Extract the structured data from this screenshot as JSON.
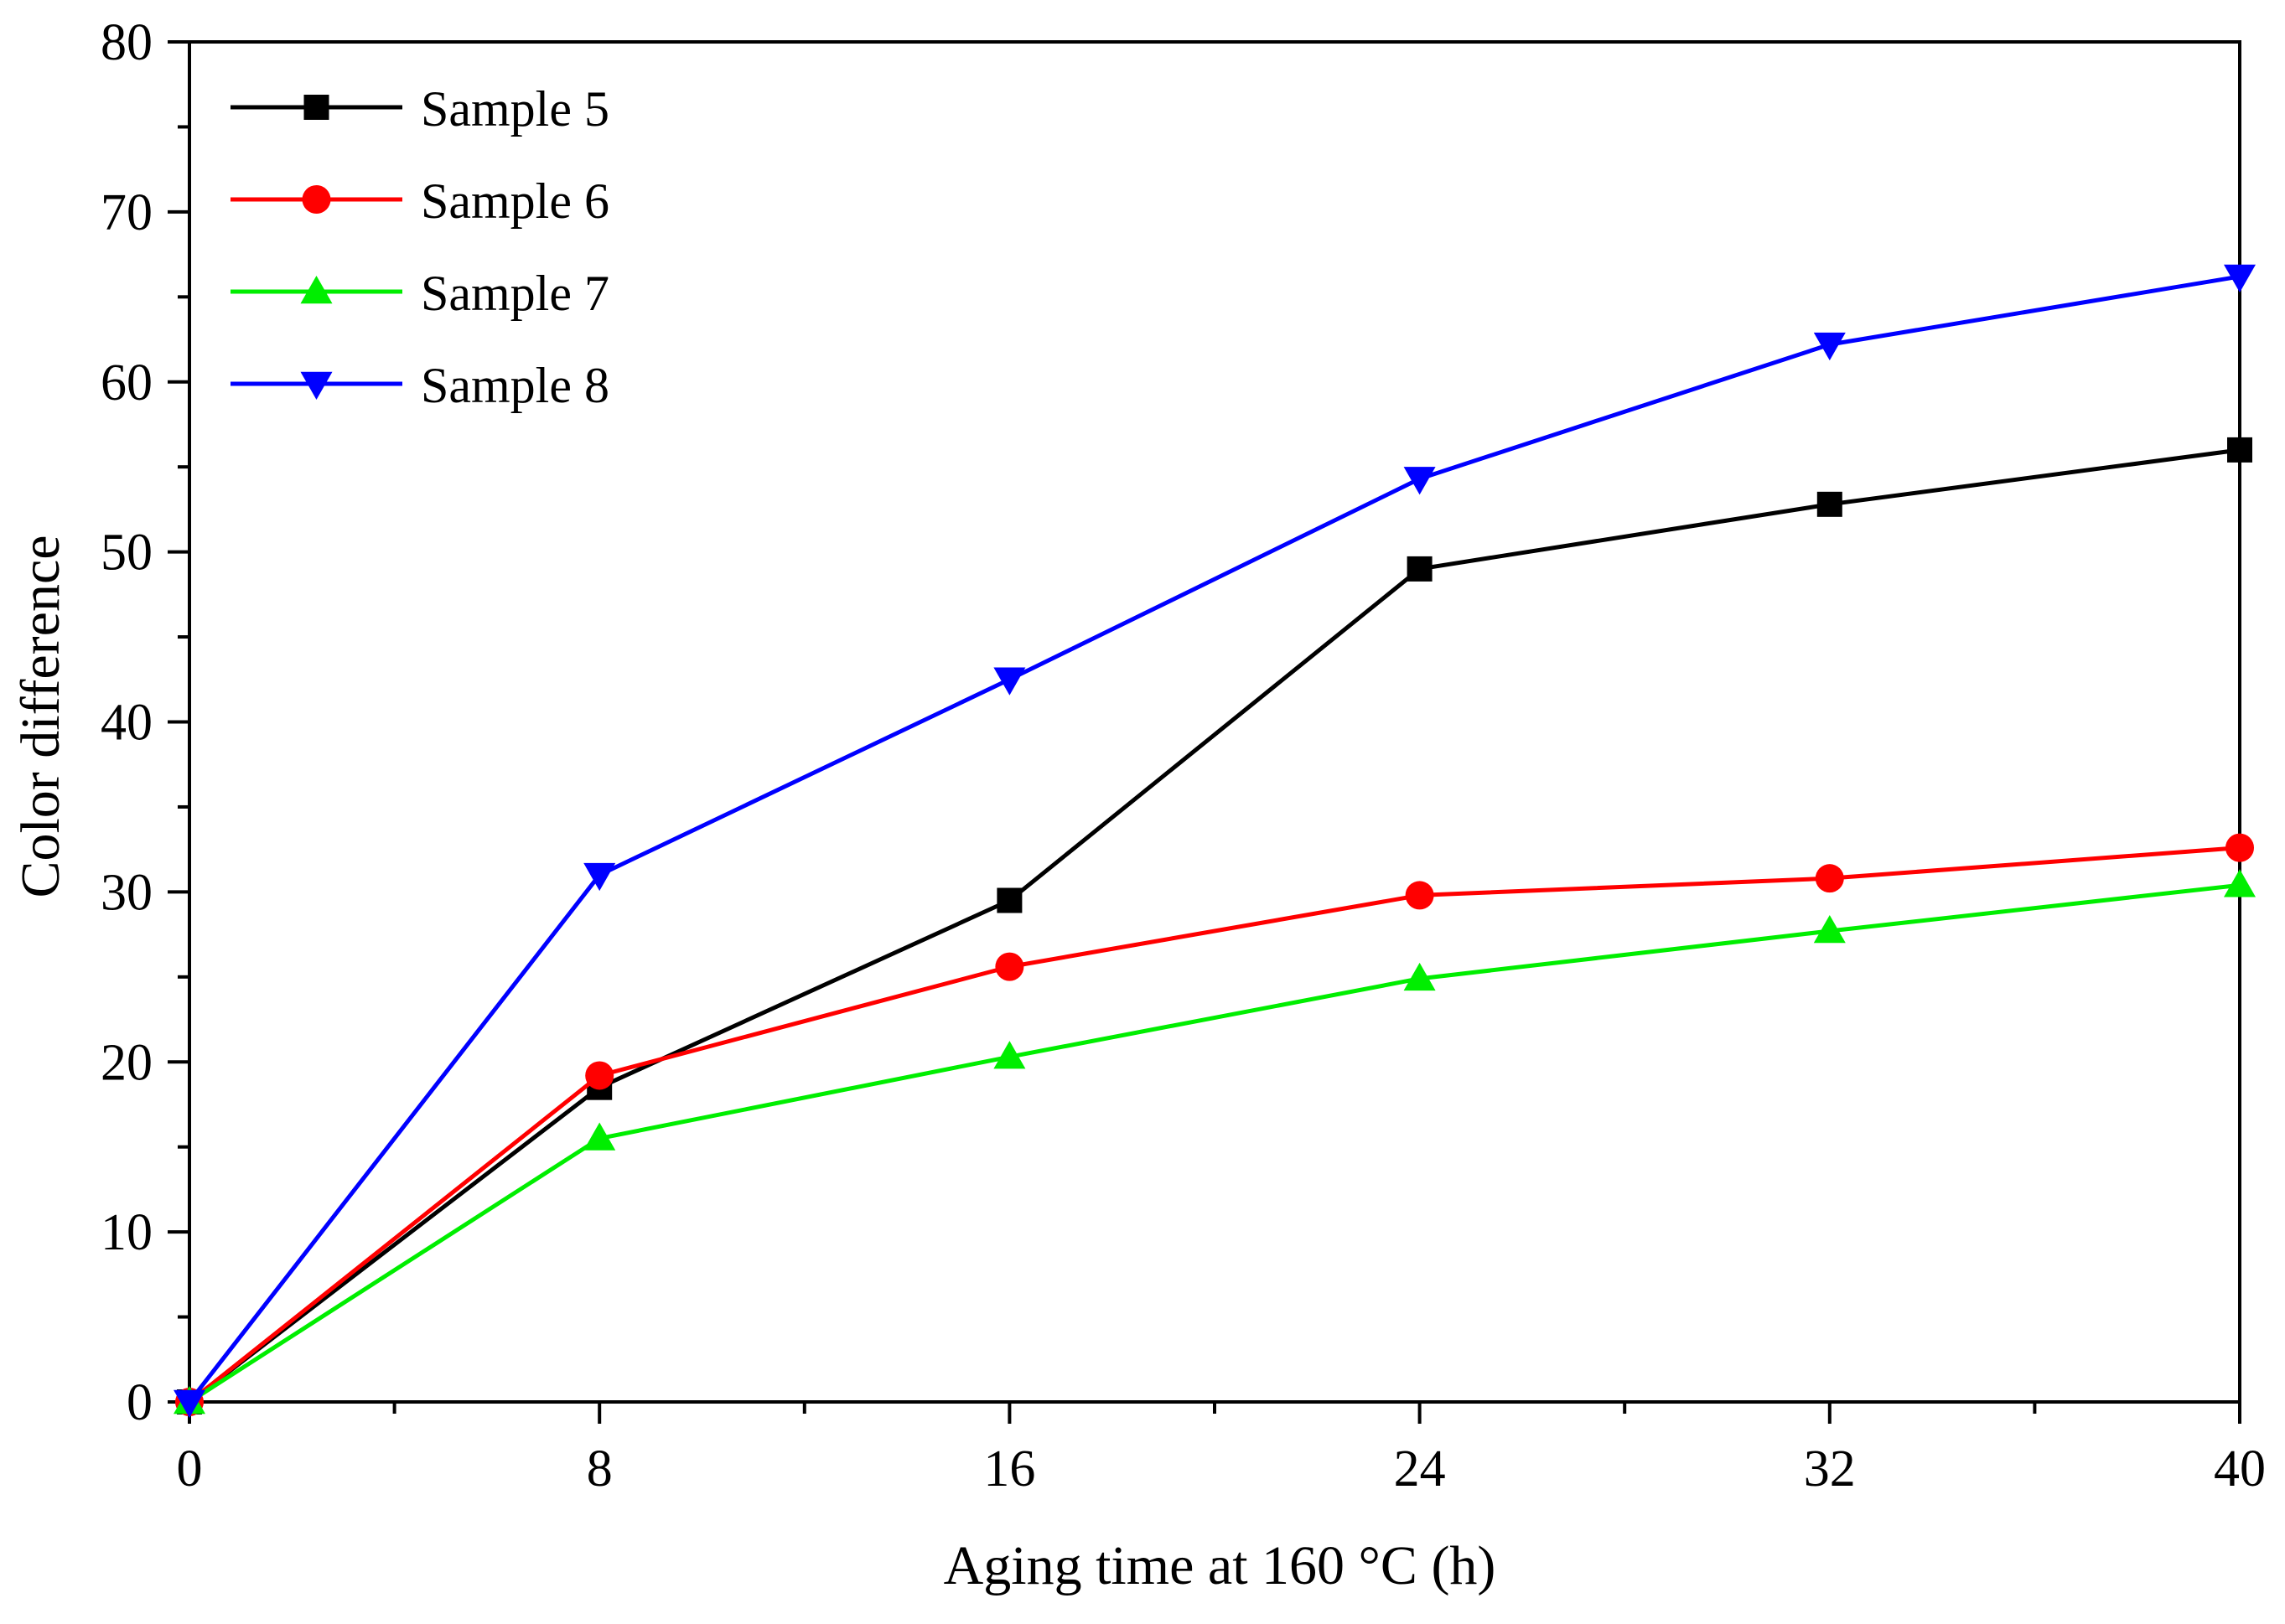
{
  "chart_data": {
    "type": "line",
    "title": "",
    "xlabel": "Aging time at 160 °C (h)",
    "ylabel": "Color difference",
    "xlim": [
      0,
      40
    ],
    "ylim": [
      0,
      80
    ],
    "x": [
      0,
      8,
      16,
      24,
      32,
      40
    ],
    "xticks": [
      0,
      8,
      16,
      24,
      32,
      40
    ],
    "xtick_labels": [
      "0",
      "8",
      "16",
      "24",
      "32",
      "40"
    ],
    "yticks": [
      0,
      10,
      20,
      30,
      40,
      50,
      60,
      70,
      80
    ],
    "ytick_labels": [
      "0",
      "10",
      "20",
      "30",
      "40",
      "50",
      "60",
      "70",
      "80"
    ],
    "grid": false,
    "legend_position": "top-left",
    "series": [
      {
        "name": "Sample 5",
        "color": "#000000",
        "marker": "square",
        "values": [
          0,
          18.5,
          29.5,
          49,
          52.8,
          56
        ]
      },
      {
        "name": "Sample 6",
        "color": "#ff0000",
        "marker": "circle",
        "values": [
          0,
          19.2,
          25.6,
          29.8,
          30.8,
          32.6
        ]
      },
      {
        "name": "Sample 7",
        "color": "#00ee00",
        "marker": "triangle-up",
        "values": [
          0,
          15.5,
          20.3,
          24.9,
          27.7,
          30.4
        ]
      },
      {
        "name": "Sample 8",
        "color": "#0000ff",
        "marker": "triangle-down",
        "values": [
          0,
          31,
          42.5,
          54.3,
          62.2,
          66.2
        ]
      }
    ]
  }
}
